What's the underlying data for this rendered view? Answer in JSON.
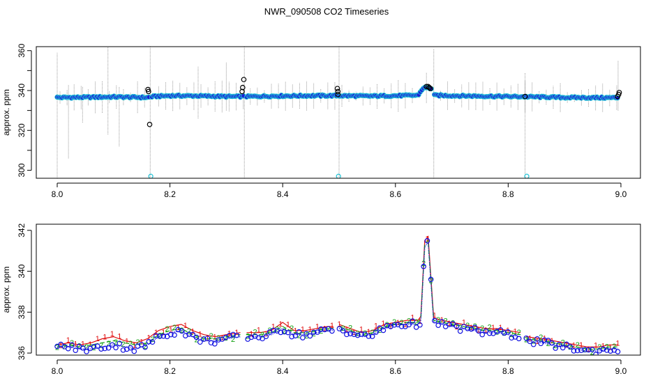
{
  "page": {
    "title": "NWR_090508  CO2 Timeseries"
  },
  "colors": {
    "background": "#ffffff",
    "axis": "#000000",
    "whisker": "#9a9a9a",
    "fill_points": "#1c1cd8",
    "ring_points": "#22c3d6",
    "outlier_points": "#000000",
    "series_1": "#e01010",
    "series_2": "#10a010",
    "series_3": "#1010e0"
  },
  "chart_data": [
    {
      "type": "scatter",
      "title": "",
      "xlabel": "",
      "ylabel": "approx. ppm",
      "xlim": [
        8.0,
        9.0
      ],
      "ylim": [
        296,
        362
      ],
      "x_ticks": [
        8.0,
        8.2,
        8.4,
        8.6,
        8.8,
        9.0
      ],
      "x_tick_labels": [
        "8.0",
        "8.2",
        "8.4",
        "8.6",
        "8.8",
        "9.0"
      ],
      "y_ticks": [
        300,
        320,
        340,
        360
      ],
      "y_tick_labels": [
        "300",
        "320",
        "340",
        "360"
      ],
      "grid": false,
      "gaps": [
        [
          8.165,
          8.168
        ],
        [
          8.332,
          8.336
        ],
        [
          8.665,
          8.668
        ]
      ],
      "baseline": [
        [
          8.0,
          336.5
        ],
        [
          8.05,
          336.6
        ],
        [
          8.1,
          336.8
        ],
        [
          8.16,
          336.5
        ],
        [
          8.17,
          337.0
        ],
        [
          8.2,
          337.4
        ],
        [
          8.25,
          337.3
        ],
        [
          8.3,
          337.0
        ],
        [
          8.33,
          337.0
        ],
        [
          8.336,
          337.0
        ],
        [
          8.4,
          337.3
        ],
        [
          8.45,
          337.4
        ],
        [
          8.5,
          337.4
        ],
        [
          8.55,
          337.2
        ],
        [
          8.6,
          337.4
        ],
        [
          8.64,
          337.6
        ],
        [
          8.65,
          341.5
        ],
        [
          8.665,
          341.0
        ],
        [
          8.668,
          337.6
        ],
        [
          8.7,
          337.4
        ],
        [
          8.75,
          337.2
        ],
        [
          8.8,
          337.0
        ],
        [
          8.85,
          336.8
        ],
        [
          8.9,
          336.5
        ],
        [
          8.95,
          336.4
        ],
        [
          9.0,
          336.4
        ]
      ],
      "whiskers": [
        {
          "x": 8.0,
          "low": 296,
          "high": 359
        },
        {
          "x": 8.02,
          "low": 306,
          "high": 343
        },
        {
          "x": 8.045,
          "low": 324,
          "high": 342
        },
        {
          "x": 8.09,
          "low": 318,
          "high": 362
        },
        {
          "x": 8.11,
          "low": 312,
          "high": 342
        },
        {
          "x": 8.165,
          "low": 296,
          "high": 362
        },
        {
          "x": 8.25,
          "low": 326,
          "high": 352
        },
        {
          "x": 8.3,
          "low": 330,
          "high": 354
        },
        {
          "x": 8.332,
          "low": 296,
          "high": 362
        },
        {
          "x": 8.5,
          "low": 296,
          "high": 362
        },
        {
          "x": 8.668,
          "low": 296,
          "high": 361
        },
        {
          "x": 8.83,
          "low": 296,
          "high": 349
        },
        {
          "x": 8.995,
          "low": 330,
          "high": 355
        }
      ],
      "outliers": [
        {
          "x": 8.161,
          "y": 340.5
        },
        {
          "x": 8.162,
          "y": 339.5
        },
        {
          "x": 8.164,
          "y": 323.0
        },
        {
          "x": 8.328,
          "y": 339.5
        },
        {
          "x": 8.329,
          "y": 341.5
        },
        {
          "x": 8.331,
          "y": 345.5
        },
        {
          "x": 8.497,
          "y": 341.0
        },
        {
          "x": 8.498,
          "y": 339.5
        },
        {
          "x": 8.498,
          "y": 338.0
        },
        {
          "x": 8.655,
          "y": 342.0
        },
        {
          "x": 8.658,
          "y": 342.0
        },
        {
          "x": 8.66,
          "y": 341.5
        },
        {
          "x": 8.662,
          "y": 341.0
        },
        {
          "x": 8.83,
          "y": 337.0
        },
        {
          "x": 8.994,
          "y": 337.0
        },
        {
          "x": 8.996,
          "y": 338.0
        },
        {
          "x": 8.997,
          "y": 339.0
        }
      ],
      "low_points": [
        {
          "x": 8.166,
          "y": 297.0
        },
        {
          "x": 8.499,
          "y": 297.0
        },
        {
          "x": 8.833,
          "y": 297.0
        }
      ]
    },
    {
      "type": "line",
      "title": "",
      "xlabel": "",
      "ylabel": "approx. ppm",
      "xlim": [
        8.0,
        9.0
      ],
      "ylim": [
        335.9,
        342.3
      ],
      "x_ticks": [
        8.0,
        8.2,
        8.4,
        8.6,
        8.8,
        9.0
      ],
      "x_tick_labels": [
        "8.0",
        "8.2",
        "8.4",
        "8.6",
        "8.8",
        "9.0"
      ],
      "y_ticks": [
        336,
        338,
        340,
        342
      ],
      "y_tick_labels": [
        "336",
        "338",
        "340",
        "342"
      ],
      "grid": false,
      "point_symbols": [
        "1",
        "2",
        "3"
      ],
      "gaps": [
        [
          8.325,
          8.336
        ],
        [
          8.49,
          8.5
        ],
        [
          8.822,
          8.832
        ]
      ],
      "series": [
        {
          "points": [
            [
              8.0,
              336.4
            ],
            [
              8.02,
              336.5
            ],
            [
              8.04,
              336.4
            ],
            [
              8.06,
              336.5
            ],
            [
              8.08,
              336.7
            ],
            [
              8.1,
              336.8
            ],
            [
              8.12,
              336.6
            ],
            [
              8.14,
              336.5
            ],
            [
              8.16,
              336.7
            ],
            [
              8.18,
              337.1
            ],
            [
              8.2,
              337.3
            ],
            [
              8.22,
              337.4
            ],
            [
              8.24,
              337.1
            ],
            [
              8.26,
              336.9
            ],
            [
              8.28,
              336.8
            ],
            [
              8.3,
              336.9
            ],
            [
              8.325,
              337.0
            ],
            [
              8.336,
              337.0
            ],
            [
              8.36,
              337.0
            ],
            [
              8.38,
              337.1
            ],
            [
              8.4,
              337.5
            ],
            [
              8.42,
              337.1
            ],
            [
              8.44,
              337.1
            ],
            [
              8.46,
              337.2
            ],
            [
              8.48,
              337.3
            ],
            [
              8.49,
              337.3
            ],
            [
              8.5,
              337.4
            ],
            [
              8.52,
              337.2
            ],
            [
              8.54,
              337.0
            ],
            [
              8.56,
              337.1
            ],
            [
              8.58,
              337.4
            ],
            [
              8.6,
              337.5
            ],
            [
              8.62,
              337.6
            ],
            [
              8.64,
              337.6
            ],
            [
              8.645,
              337.8
            ],
            [
              8.652,
              341.5
            ],
            [
              8.658,
              341.7
            ],
            [
              8.668,
              337.7
            ],
            [
              8.7,
              337.5
            ],
            [
              8.72,
              337.4
            ],
            [
              8.74,
              337.3
            ],
            [
              8.76,
              337.2
            ],
            [
              8.78,
              337.2
            ],
            [
              8.8,
              337.1
            ],
            [
              8.822,
              337.0
            ],
            [
              8.832,
              336.8
            ],
            [
              8.86,
              336.7
            ],
            [
              8.88,
              336.6
            ],
            [
              8.9,
              336.5
            ],
            [
              8.92,
              336.4
            ],
            [
              8.94,
              336.3
            ],
            [
              8.96,
              336.3
            ],
            [
              8.98,
              336.4
            ],
            [
              8.995,
              336.4
            ]
          ]
        },
        {
          "points": [
            [
              8.0,
              336.3
            ],
            [
              8.02,
              336.4
            ],
            [
              8.04,
              336.3
            ],
            [
              8.06,
              336.4
            ],
            [
              8.08,
              336.5
            ],
            [
              8.1,
              336.6
            ],
            [
              8.12,
              336.5
            ],
            [
              8.14,
              336.4
            ],
            [
              8.16,
              336.5
            ],
            [
              8.18,
              336.9
            ],
            [
              8.2,
              337.1
            ],
            [
              8.22,
              337.2
            ],
            [
              8.24,
              336.9
            ],
            [
              8.26,
              336.7
            ],
            [
              8.28,
              336.7
            ],
            [
              8.3,
              336.8
            ],
            [
              8.325,
              336.9
            ],
            [
              8.336,
              336.9
            ],
            [
              8.36,
              336.9
            ],
            [
              8.38,
              337.0
            ],
            [
              8.4,
              337.3
            ],
            [
              8.42,
              337.0
            ],
            [
              8.44,
              337.0
            ],
            [
              8.46,
              337.1
            ],
            [
              8.48,
              337.2
            ],
            [
              8.49,
              337.2
            ],
            [
              8.5,
              337.3
            ],
            [
              8.52,
              337.1
            ],
            [
              8.54,
              336.9
            ],
            [
              8.56,
              337.0
            ],
            [
              8.58,
              337.3
            ],
            [
              8.6,
              337.4
            ],
            [
              8.62,
              337.5
            ],
            [
              8.64,
              337.5
            ],
            [
              8.645,
              337.7
            ],
            [
              8.652,
              341.3
            ],
            [
              8.658,
              341.5
            ],
            [
              8.668,
              337.6
            ],
            [
              8.7,
              337.4
            ],
            [
              8.72,
              337.3
            ],
            [
              8.74,
              337.2
            ],
            [
              8.76,
              337.1
            ],
            [
              8.78,
              337.1
            ],
            [
              8.8,
              337.0
            ],
            [
              8.822,
              336.9
            ],
            [
              8.832,
              336.7
            ],
            [
              8.86,
              336.6
            ],
            [
              8.88,
              336.5
            ],
            [
              8.9,
              336.4
            ],
            [
              8.92,
              336.3
            ],
            [
              8.94,
              336.2
            ],
            [
              8.96,
              336.2
            ],
            [
              8.98,
              336.3
            ],
            [
              8.995,
              336.3
            ]
          ]
        },
        {
          "points": [
            [
              8.0,
              336.3
            ],
            [
              8.02,
              336.3
            ],
            [
              8.04,
              336.2
            ],
            [
              8.06,
              336.2
            ],
            [
              8.08,
              336.3
            ],
            [
              8.1,
              336.4
            ],
            [
              8.12,
              336.3
            ],
            [
              8.14,
              336.2
            ],
            [
              8.16,
              336.4
            ],
            [
              8.18,
              336.8
            ],
            [
              8.2,
              337.0
            ],
            [
              8.22,
              337.1
            ],
            [
              8.24,
              336.8
            ],
            [
              8.26,
              336.6
            ],
            [
              8.28,
              336.6
            ],
            [
              8.3,
              336.7
            ],
            [
              8.325,
              336.8
            ],
            [
              8.336,
              336.8
            ],
            [
              8.36,
              336.8
            ],
            [
              8.38,
              336.9
            ],
            [
              8.4,
              337.2
            ],
            [
              8.42,
              336.9
            ],
            [
              8.44,
              336.9
            ],
            [
              8.46,
              337.0
            ],
            [
              8.48,
              337.1
            ],
            [
              8.49,
              337.1
            ],
            [
              8.5,
              337.2
            ],
            [
              8.52,
              337.0
            ],
            [
              8.54,
              336.8
            ],
            [
              8.56,
              336.9
            ],
            [
              8.58,
              337.2
            ],
            [
              8.6,
              337.4
            ],
            [
              8.62,
              337.4
            ],
            [
              8.64,
              337.4
            ],
            [
              8.645,
              337.6
            ],
            [
              8.652,
              341.2
            ],
            [
              8.658,
              341.4
            ],
            [
              8.668,
              337.5
            ],
            [
              8.7,
              337.3
            ],
            [
              8.72,
              337.2
            ],
            [
              8.74,
              337.1
            ],
            [
              8.76,
              337.0
            ],
            [
              8.78,
              337.0
            ],
            [
              8.8,
              336.9
            ],
            [
              8.822,
              336.8
            ],
            [
              8.832,
              336.6
            ],
            [
              8.86,
              336.5
            ],
            [
              8.88,
              336.4
            ],
            [
              8.9,
              336.3
            ],
            [
              8.92,
              336.2
            ],
            [
              8.94,
              336.1
            ],
            [
              8.96,
              336.1
            ],
            [
              8.98,
              336.2
            ],
            [
              8.995,
              336.2
            ]
          ]
        }
      ]
    }
  ]
}
